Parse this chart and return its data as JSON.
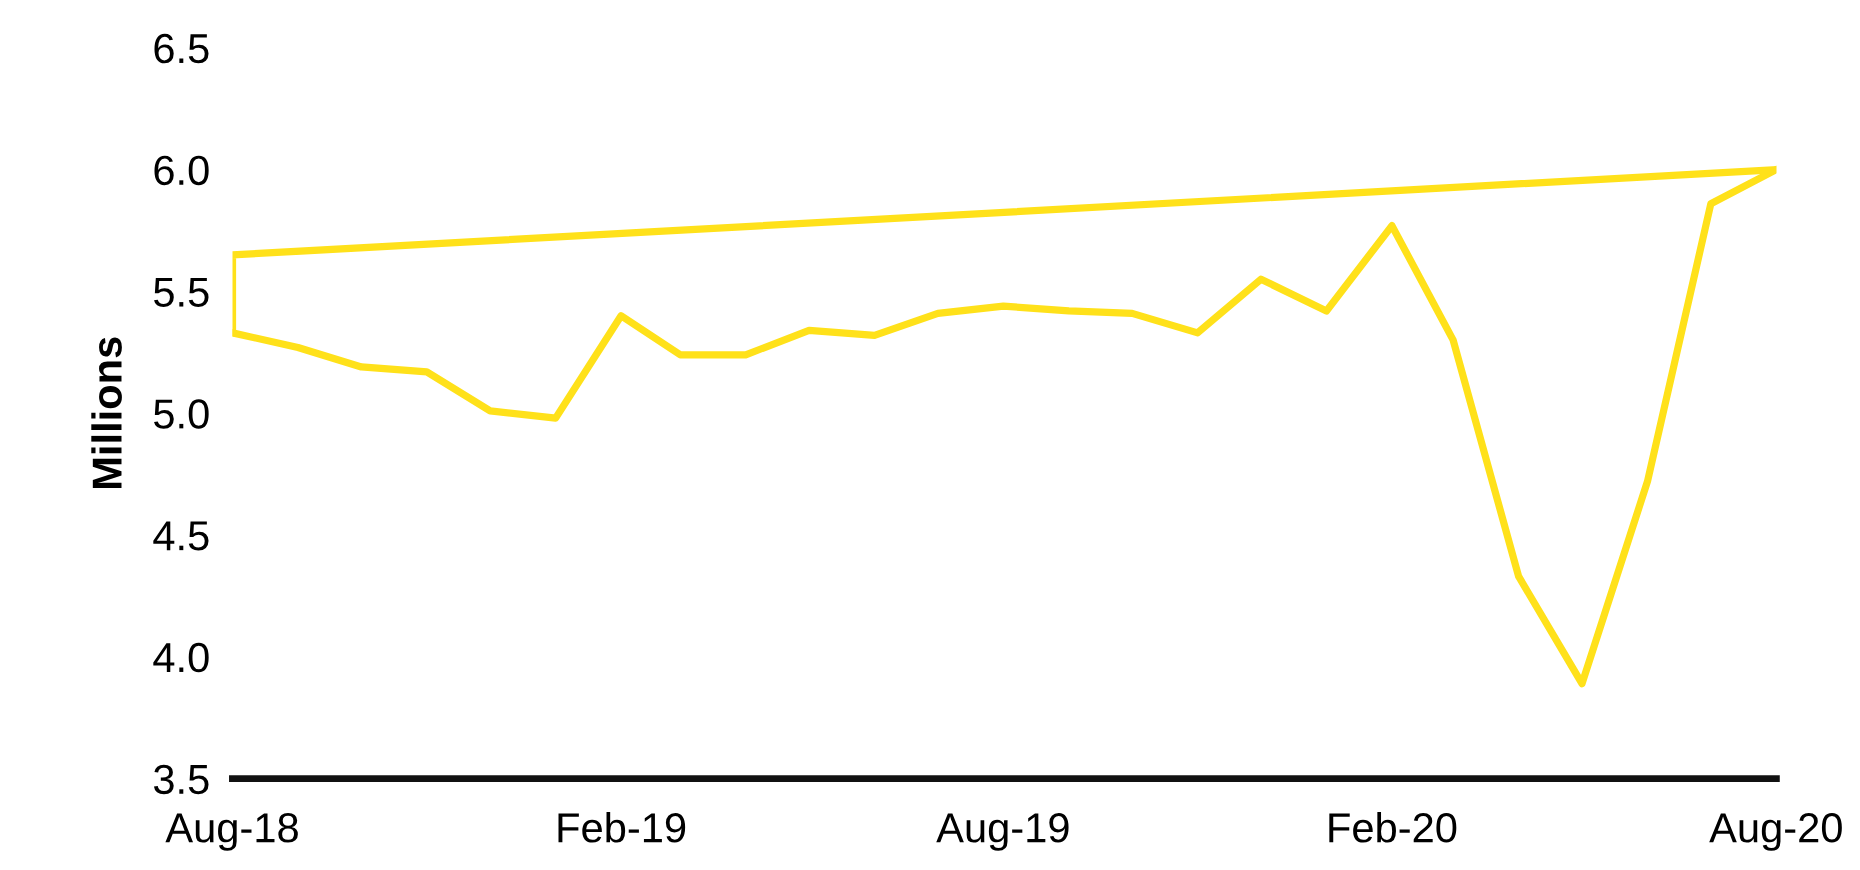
{
  "chart_data": {
    "type": "line",
    "ylabel": "Millions",
    "series": [
      {
        "color": "#ffe11a",
        "x": [
          "2018-08",
          "2018-09",
          "2018-10",
          "2018-11",
          "2018-12",
          "2019-01",
          "2019-02",
          "2019-03",
          "2019-04",
          "2019-05",
          "2019-06",
          "2019-07",
          "2019-08",
          "2019-09",
          "2019-10",
          "2019-11",
          "2019-12",
          "2020-01",
          "2020-02",
          "2020-03",
          "2020-04",
          "2020-05",
          "2020-06",
          "2020-07",
          "2020-08"
        ],
        "values": [
          5.33,
          5.27,
          5.19,
          5.17,
          5.01,
          4.98,
          5.4,
          5.24,
          5.24,
          5.34,
          5.32,
          5.41,
          5.44,
          5.42,
          5.41,
          5.33,
          5.55,
          5.42,
          5.77,
          5.3,
          4.33,
          3.89,
          4.72,
          5.86,
          6.0
        ]
      },
      {
        "color": "#ffe11a",
        "x": [
          "2018-08",
          "2018-08",
          "2020-08"
        ],
        "values": [
          5.33,
          5.65,
          6.0
        ]
      }
    ],
    "xlim": [
      "2018-08",
      "2020-08"
    ],
    "xticks": [
      {
        "value": "2018-08",
        "label": "Aug-18"
      },
      {
        "value": "2019-02",
        "label": "Feb-19"
      },
      {
        "value": "2019-08",
        "label": "Aug-19"
      },
      {
        "value": "2020-02",
        "label": "Feb-20"
      },
      {
        "value": "2020-08",
        "label": "Aug-20"
      }
    ],
    "ylim": [
      3.5,
      6.5
    ],
    "yticks": [
      {
        "value": 3.5,
        "label": "3.5"
      },
      {
        "value": 4.0,
        "label": "4.0"
      },
      {
        "value": 4.5,
        "label": "4.5"
      },
      {
        "value": 5.0,
        "label": "5.0"
      },
      {
        "value": 5.5,
        "label": "5.5"
      },
      {
        "value": 6.0,
        "label": "6.0"
      },
      {
        "value": 6.5,
        "label": "6.5"
      }
    ],
    "grid": false,
    "legend": false,
    "marker": "none",
    "line_style": "solid"
  }
}
